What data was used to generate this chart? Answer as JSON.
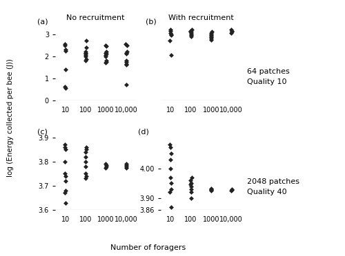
{
  "title_a": "No recruitment",
  "title_b": "With recruitment",
  "label_a": "(a)",
  "label_b": "(b)",
  "label_c": "(c)",
  "label_d": "(d)",
  "annotation_top": "64 patches\nQuality 10",
  "annotation_bot": "2048 patches\nQuality 40",
  "xlabel": "Number of foragers",
  "ylabel": "log (Energy collected per bee (J))",
  "x_tick_labels": [
    "10",
    "100",
    "1000",
    "10,000"
  ],
  "a_data": {
    "10": [
      0.55,
      0.6,
      1.4,
      2.25,
      2.3,
      2.5,
      2.55
    ],
    "100": [
      1.8,
      1.85,
      2.0,
      2.05,
      2.1,
      2.15,
      2.2,
      2.4,
      2.7
    ],
    "1000": [
      1.7,
      1.75,
      1.8,
      2.0,
      2.05,
      2.1,
      2.15,
      2.2,
      2.45,
      2.5
    ],
    "10000": [
      0.72,
      1.6,
      1.65,
      1.75,
      1.8,
      2.1,
      2.15,
      2.2,
      2.5,
      2.55
    ]
  },
  "b_data": {
    "10": [
      2.05,
      2.7,
      2.95,
      3.0,
      3.05,
      3.15,
      3.2
    ],
    "100": [
      2.9,
      2.95,
      3.0,
      3.05,
      3.1,
      3.12,
      3.15,
      3.2
    ],
    "1000": [
      2.75,
      2.8,
      2.85,
      2.9,
      2.95,
      3.0,
      3.05,
      3.1
    ],
    "10000": [
      3.05,
      3.1,
      3.15,
      3.2
    ]
  },
  "c_data": {
    "10": [
      3.63,
      3.67,
      3.68,
      3.72,
      3.74,
      3.75,
      3.8,
      3.85,
      3.86,
      3.87
    ],
    "100": [
      3.73,
      3.74,
      3.75,
      3.78,
      3.8,
      3.82,
      3.84,
      3.85,
      3.86
    ],
    "1000": [
      3.775,
      3.78,
      3.785,
      3.79
    ],
    "10000": [
      3.775,
      3.78,
      3.785,
      3.79
    ]
  },
  "d_data": {
    "10": [
      3.87,
      3.92,
      3.93,
      3.95,
      3.97,
      4.0,
      4.03,
      4.05,
      4.07,
      4.08
    ],
    "100": [
      3.9,
      3.92,
      3.93,
      3.94,
      3.945,
      3.95,
      3.96,
      3.97
    ],
    "1000": [
      3.925,
      3.928,
      3.93,
      3.932
    ],
    "10000": [
      3.925,
      3.928,
      3.93
    ]
  },
  "ylim_ab": [
    0.0,
    3.5
  ],
  "yticks_ab": [
    0.0,
    1.0,
    2.0,
    3.0
  ],
  "ylim_c": [
    3.6,
    3.92
  ],
  "yticks_c": [
    3.6,
    3.7,
    3.8,
    3.9
  ],
  "ylim_d": [
    3.86,
    4.12
  ],
  "yticks_d": [
    3.86,
    3.9,
    4.0
  ],
  "marker": "D",
  "marker_size": 3.5,
  "marker_color": "#222222",
  "jitter_scale": 0.04,
  "bg_color": "#ffffff"
}
